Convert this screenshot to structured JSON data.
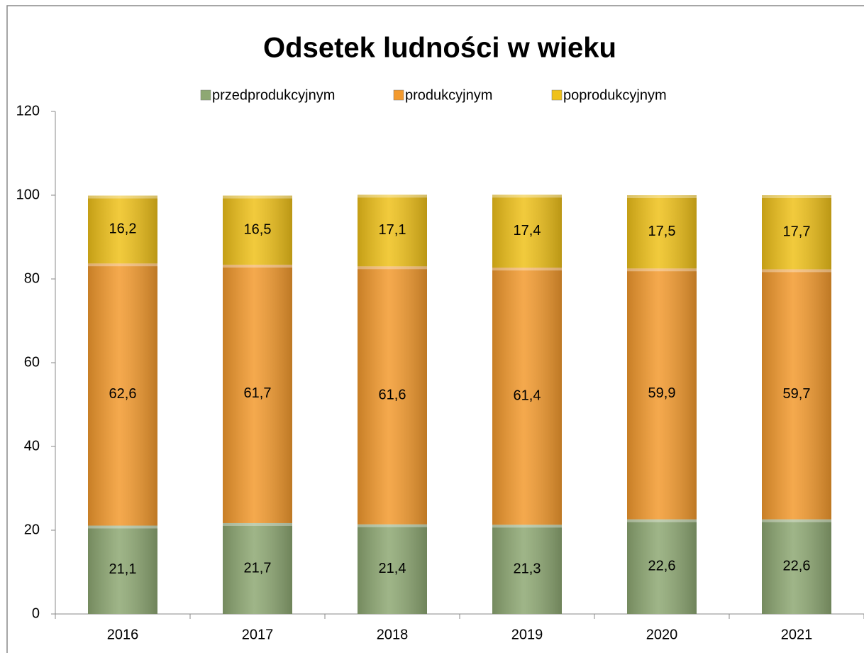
{
  "chart_data": {
    "type": "stacked_bar",
    "title": "Odsetek ludności w wieku",
    "categories": [
      "2016",
      "2017",
      "2018",
      "2019",
      "2020",
      "2021"
    ],
    "series": [
      {
        "name": "przedprodukcyjnym",
        "color": "#8ea873",
        "values": [
          21.1,
          21.7,
          21.4,
          21.3,
          22.6,
          22.6
        ],
        "value_labels": [
          "21,1",
          "21,7",
          "21,4",
          "21,3",
          "22,6",
          "22,6"
        ]
      },
      {
        "name": "produkcyjnym",
        "color": "#f39a2e",
        "values": [
          62.6,
          61.7,
          61.6,
          61.4,
          59.9,
          59.7
        ],
        "value_labels": [
          "62,6",
          "61,7",
          "61,6",
          "61,4",
          "59,9",
          "59,7"
        ]
      },
      {
        "name": "poprodukcyjnym",
        "color": "#efc11a",
        "values": [
          16.2,
          16.5,
          17.1,
          17.4,
          17.5,
          17.7
        ],
        "value_labels": [
          "16,2",
          "16,5",
          "17,1",
          "17,4",
          "17,5",
          "17,7"
        ]
      }
    ],
    "ylim": [
      0,
      120
    ],
    "yticks": [
      0,
      20,
      40,
      60,
      80,
      100,
      120
    ],
    "legend": "top"
  }
}
